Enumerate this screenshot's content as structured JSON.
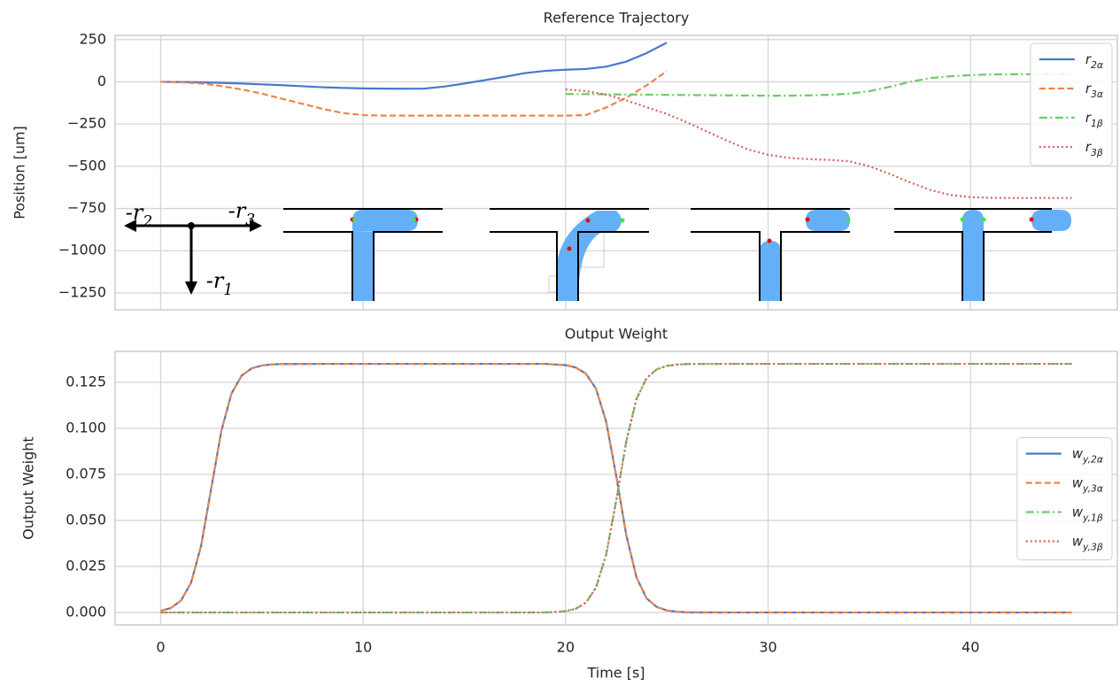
{
  "chart_data": [
    {
      "type": "line",
      "title": "Reference Trajectory",
      "ylabel": "Position [um]",
      "x": [
        0,
        1,
        2,
        3,
        4,
        5,
        6,
        7,
        8,
        9,
        10,
        11,
        12,
        13,
        14,
        15,
        16,
        17,
        18,
        19,
        20,
        21,
        22,
        23,
        24,
        25,
        26,
        27,
        28,
        29,
        30,
        31,
        32,
        33,
        34,
        35,
        36,
        37,
        38,
        39,
        40,
        41,
        42,
        43,
        44,
        45
      ],
      "series": [
        {
          "name": "r2α",
          "color": "#4878cf",
          "linestyle": "solid",
          "values": [
            0,
            -1,
            -3,
            -6,
            -10,
            -15,
            -20,
            -26,
            -32,
            -36,
            -39,
            -40,
            -41,
            -40,
            -28,
            -10,
            10,
            30,
            52,
            65,
            72,
            76,
            90,
            120,
            170,
            232,
            null,
            null,
            null,
            null,
            null,
            null,
            null,
            null,
            null,
            null,
            null,
            null,
            null,
            null,
            null,
            null,
            null,
            null,
            null,
            null
          ]
        },
        {
          "name": "r3α",
          "color": "#ee854a",
          "linestyle": "dashed",
          "values": [
            0,
            -2,
            -10,
            -25,
            -45,
            -70,
            -100,
            -130,
            -160,
            -185,
            -197,
            -200,
            -200,
            -200,
            -200,
            -200,
            -200,
            -200,
            -200,
            -200,
            -200,
            -197,
            -152,
            -94,
            -21,
            63,
            null,
            null,
            null,
            null,
            null,
            null,
            null,
            null,
            null,
            null,
            null,
            null,
            null,
            null,
            null,
            null,
            null,
            null,
            null,
            null
          ]
        },
        {
          "name": "r1β",
          "color": "#6acc64",
          "linestyle": "dashdot",
          "values": [
            null,
            null,
            null,
            null,
            null,
            null,
            null,
            null,
            null,
            null,
            null,
            null,
            null,
            null,
            null,
            null,
            null,
            null,
            null,
            null,
            -72,
            -73,
            -74,
            -75,
            -76,
            -77,
            -78,
            -79,
            -80,
            -81,
            -82,
            -82,
            -80,
            -77,
            -70,
            -55,
            -30,
            0,
            22,
            33,
            40,
            44,
            45,
            45,
            45,
            45
          ]
        },
        {
          "name": "r3β",
          "color": "#d65f5f",
          "linestyle": "dotted",
          "values": [
            null,
            null,
            null,
            null,
            null,
            null,
            null,
            null,
            null,
            null,
            null,
            null,
            null,
            null,
            null,
            null,
            null,
            null,
            null,
            null,
            -45,
            -55,
            -75,
            -110,
            -150,
            -190,
            -240,
            -295,
            -350,
            -400,
            -432,
            -450,
            -458,
            -462,
            -470,
            -500,
            -545,
            -595,
            -640,
            -670,
            -683,
            -687,
            -688,
            -688,
            -688,
            -688
          ]
        }
      ],
      "xlim": [
        -2.25,
        47.25
      ],
      "xticks": [
        0,
        10,
        20,
        30,
        40
      ],
      "xtick_labels": false,
      "ylim": [
        -1350,
        275
      ],
      "yticks": [
        250,
        0,
        {
          "value": -250,
          "label": "−250"
        },
        {
          "value": -500,
          "label": "−500"
        },
        {
          "value": -750,
          "label": "−750"
        },
        {
          "value": -1000,
          "label": "−1000"
        },
        {
          "value": -1250,
          "label": "−1250"
        }
      ],
      "grid": true,
      "legend": "upper right",
      "annotations": [
        "-r2",
        "-r3",
        "-r1"
      ]
    },
    {
      "type": "line",
      "title": "Output Weight",
      "xlabel": "Time [s]",
      "ylabel": "Output Weight",
      "x": [
        0,
        0.5,
        1,
        1.5,
        2,
        2.5,
        3,
        3.5,
        4,
        4.5,
        5,
        5.5,
        6,
        8,
        10,
        12,
        14,
        16,
        18,
        19,
        20,
        20.5,
        21,
        21.5,
        22,
        22.5,
        23,
        23.5,
        24,
        24.5,
        25,
        25.5,
        26,
        28,
        30,
        35,
        40,
        45
      ],
      "series": [
        {
          "name": "wy,2α",
          "color": "#4878cf",
          "linestyle": "solid",
          "values": [
            0.0009,
            0.0024,
            0.0064,
            0.0161,
            0.0363,
            0.0675,
            0.0987,
            0.1189,
            0.1286,
            0.1326,
            0.1341,
            0.1347,
            0.1349,
            0.135,
            0.135,
            0.135,
            0.135,
            0.135,
            0.135,
            0.135,
            0.1343,
            0.133,
            0.1297,
            0.1215,
            0.1038,
            0.0742,
            0.0419,
            0.0191,
            0.0077,
            0.003,
            0.0011,
            0.0004,
            0.0001,
            0,
            0,
            0,
            0,
            0
          ]
        },
        {
          "name": "wy,3α",
          "color": "#ee854a",
          "linestyle": "dashed",
          "values": [
            0.0009,
            0.0024,
            0.0064,
            0.0161,
            0.0363,
            0.0675,
            0.0987,
            0.1189,
            0.1286,
            0.1326,
            0.1341,
            0.1347,
            0.1349,
            0.135,
            0.135,
            0.135,
            0.135,
            0.135,
            0.135,
            0.135,
            0.1343,
            0.133,
            0.1297,
            0.1215,
            0.1038,
            0.0742,
            0.0419,
            0.0191,
            0.0077,
            0.003,
            0.0011,
            0.0004,
            0.0001,
            0,
            0,
            0,
            0,
            0
          ]
        },
        {
          "name": "wy,1β",
          "color": "#6acc64",
          "linestyle": "dashdot",
          "values": [
            0,
            0,
            0,
            0,
            0,
            0,
            0,
            0,
            0,
            0,
            0,
            0,
            0,
            0,
            0,
            0,
            0,
            0,
            0,
            0,
            0.0007,
            0.002,
            0.0053,
            0.0135,
            0.0312,
            0.0608,
            0.0931,
            0.1159,
            0.1273,
            0.132,
            0.1339,
            0.1346,
            0.1349,
            0.135,
            0.135,
            0.135,
            0.135,
            0.135
          ]
        },
        {
          "name": "wy,3β",
          "color": "#d65f5f",
          "linestyle": "dotted",
          "values": [
            0,
            0,
            0,
            0,
            0,
            0,
            0,
            0,
            0,
            0,
            0,
            0,
            0,
            0,
            0,
            0,
            0,
            0,
            0,
            0,
            0.0007,
            0.002,
            0.0053,
            0.0135,
            0.0312,
            0.0608,
            0.0931,
            0.1159,
            0.1273,
            0.132,
            0.1339,
            0.1346,
            0.1349,
            0.135,
            0.135,
            0.135,
            0.135,
            0.135
          ]
        }
      ],
      "xlim": [
        -2.25,
        47.25
      ],
      "xticks": [
        0,
        10,
        20,
        30,
        40
      ],
      "xtick_labels": true,
      "ylim": [
        -0.00675,
        0.14175
      ],
      "yticks": [
        {
          "value": 0,
          "label": "0.000"
        },
        {
          "value": 0.025,
          "label": "0.025"
        },
        {
          "value": 0.05,
          "label": "0.050"
        },
        {
          "value": 0.075,
          "label": "0.075"
        },
        {
          "value": 0.1,
          "label": "0.100"
        },
        {
          "value": 0.125,
          "label": "0.125"
        }
      ],
      "grid": true,
      "legend": "center right"
    }
  ]
}
